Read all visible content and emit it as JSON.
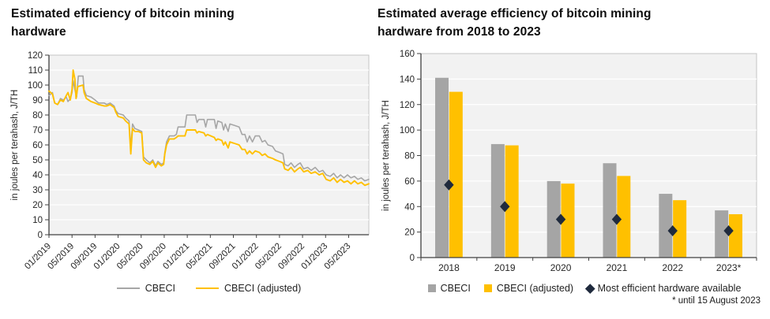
{
  "palette": {
    "plot_bg": "#F2F2F2",
    "grid": "#FFFFFF",
    "axis": "#404040",
    "plot_border": "#C4C4C4",
    "tick_text": "#262626",
    "title_text": "#0D0D0D"
  },
  "chart_data": [
    {
      "type": "line",
      "title": "Estimated efficiency of bitcoin mining hardware",
      "xlabel": "",
      "ylabel": "in joules per terahash, J/TH",
      "ylim": [
        0,
        120
      ],
      "ytick_step": 10,
      "grid": true,
      "legend_position": "bottom",
      "xlim_months": [
        0,
        55.5
      ],
      "xticks": {
        "months": [
          0,
          4,
          8,
          12,
          16,
          20,
          24,
          28,
          32,
          36,
          40,
          44,
          48,
          52
        ],
        "labels": [
          "01/2019",
          "05/2019",
          "09/2019",
          "01/2020",
          "05/2020",
          "09/2020",
          "01/2021",
          "05/2021",
          "09/2021",
          "01/2022",
          "05/2022",
          "09/2022",
          "01/2023",
          "05/2023"
        ]
      },
      "series": [
        {
          "name": "CBECI",
          "color": "#A6A6A6",
          "points": [
            [
              0,
              93
            ],
            [
              0.6,
              95
            ],
            [
              1,
              88
            ],
            [
              1.5,
              87
            ],
            [
              2,
              91
            ],
            [
              2.5,
              90
            ],
            [
              3,
              92
            ],
            [
              3.3,
              89
            ],
            [
              3.7,
              91
            ],
            [
              4,
              95
            ],
            [
              4.2,
              103
            ],
            [
              4.5,
              97
            ],
            [
              4.8,
              92
            ],
            [
              5.1,
              106
            ],
            [
              5.9,
              106
            ],
            [
              6.1,
              97
            ],
            [
              6.5,
              93
            ],
            [
              7.3,
              92
            ],
            [
              8,
              90
            ],
            [
              8.6,
              88
            ],
            [
              9.6,
              88
            ],
            [
              10,
              87
            ],
            [
              10.6,
              88
            ],
            [
              11.3,
              86
            ],
            [
              11.6,
              83
            ],
            [
              12,
              81
            ],
            [
              12.9,
              80
            ],
            [
              13.3,
              78
            ],
            [
              13.9,
              76
            ],
            [
              14.2,
              58
            ],
            [
              14.5,
              74
            ],
            [
              14.9,
              71
            ],
            [
              15.5,
              70
            ],
            [
              16.1,
              69
            ],
            [
              16.4,
              52
            ],
            [
              16.9,
              50
            ],
            [
              17.5,
              48
            ],
            [
              18,
              50
            ],
            [
              18.5,
              46
            ],
            [
              18.9,
              49
            ],
            [
              19.5,
              47
            ],
            [
              19.9,
              48
            ],
            [
              20.1,
              55
            ],
            [
              20.4,
              62
            ],
            [
              20.9,
              66
            ],
            [
              21.7,
              66
            ],
            [
              22.1,
              67
            ],
            [
              22.4,
              72
            ],
            [
              23.6,
              72
            ],
            [
              23.9,
              80
            ],
            [
              25.4,
              80
            ],
            [
              25.7,
              75
            ],
            [
              26,
              77
            ],
            [
              26.9,
              77
            ],
            [
              27.2,
              72
            ],
            [
              27.5,
              77
            ],
            [
              28.7,
              77
            ],
            [
              29,
              71
            ],
            [
              29.3,
              76
            ],
            [
              30,
              75
            ],
            [
              30.3,
              70
            ],
            [
              30.6,
              74
            ],
            [
              31.1,
              69
            ],
            [
              31.4,
              74
            ],
            [
              32.2,
              73
            ],
            [
              33,
              72
            ],
            [
              33.5,
              67
            ],
            [
              34,
              67
            ],
            [
              34.4,
              62
            ],
            [
              34.8,
              66
            ],
            [
              35.3,
              62
            ],
            [
              35.8,
              66
            ],
            [
              36.5,
              66
            ],
            [
              37,
              62
            ],
            [
              37.5,
              63
            ],
            [
              38,
              60
            ],
            [
              38.8,
              59
            ],
            [
              39.3,
              56
            ],
            [
              40,
              55
            ],
            [
              40.6,
              54
            ],
            [
              40.9,
              47
            ],
            [
              41.5,
              46
            ],
            [
              42,
              48
            ],
            [
              42.6,
              45
            ],
            [
              43.2,
              47
            ],
            [
              43.6,
              48
            ],
            [
              44.2,
              44
            ],
            [
              44.9,
              45
            ],
            [
              45.5,
              43
            ],
            [
              46.2,
              45
            ],
            [
              46.9,
              42
            ],
            [
              47.5,
              43
            ],
            [
              48.1,
              40
            ],
            [
              48.8,
              39
            ],
            [
              49.4,
              41
            ],
            [
              50,
              38
            ],
            [
              50.6,
              40
            ],
            [
              51.2,
              38
            ],
            [
              51.8,
              40
            ],
            [
              52.4,
              38
            ],
            [
              53,
              39
            ],
            [
              53.6,
              37
            ],
            [
              54.2,
              38
            ],
            [
              54.8,
              36
            ],
            [
              55.5,
              37
            ]
          ]
        },
        {
          "name": "CBECI (adjusted)",
          "color": "#FFC000",
          "points": [
            [
              0,
              96
            ],
            [
              0.6,
              94
            ],
            [
              1,
              88
            ],
            [
              1.5,
              87
            ],
            [
              2,
              90
            ],
            [
              2.5,
              89
            ],
            [
              3,
              93
            ],
            [
              3.3,
              95
            ],
            [
              3.7,
              90
            ],
            [
              4,
              97
            ],
            [
              4.2,
              110
            ],
            [
              4.5,
              104
            ],
            [
              4.7,
              91
            ],
            [
              5,
              99
            ],
            [
              5.9,
              100
            ],
            [
              6.1,
              95
            ],
            [
              6.5,
              91
            ],
            [
              7.3,
              89
            ],
            [
              8,
              88
            ],
            [
              8.6,
              87
            ],
            [
              9.6,
              86
            ],
            [
              10,
              86
            ],
            [
              10.6,
              87
            ],
            [
              11.3,
              85
            ],
            [
              11.6,
              82
            ],
            [
              12,
              79
            ],
            [
              12.9,
              78
            ],
            [
              13.3,
              76
            ],
            [
              13.9,
              74
            ],
            [
              14.2,
              54
            ],
            [
              14.5,
              71
            ],
            [
              14.9,
              69
            ],
            [
              15.5,
              69
            ],
            [
              16.1,
              68
            ],
            [
              16.4,
              50
            ],
            [
              16.9,
              48
            ],
            [
              17.5,
              47
            ],
            [
              18,
              49
            ],
            [
              18.5,
              45
            ],
            [
              18.9,
              48
            ],
            [
              19.5,
              46
            ],
            [
              19.9,
              47
            ],
            [
              20.1,
              54
            ],
            [
              20.4,
              60
            ],
            [
              20.9,
              64
            ],
            [
              21.7,
              64
            ],
            [
              22.1,
              65
            ],
            [
              22.4,
              66
            ],
            [
              23.6,
              66
            ],
            [
              23.9,
              70
            ],
            [
              25.4,
              70
            ],
            [
              25.7,
              68
            ],
            [
              26,
              69
            ],
            [
              26.9,
              68
            ],
            [
              27.2,
              66
            ],
            [
              27.5,
              67
            ],
            [
              28.7,
              65
            ],
            [
              29,
              63
            ],
            [
              29.3,
              64
            ],
            [
              30,
              63
            ],
            [
              30.3,
              60
            ],
            [
              30.6,
              62
            ],
            [
              31.1,
              58
            ],
            [
              31.4,
              62
            ],
            [
              32.2,
              61
            ],
            [
              33,
              60
            ],
            [
              33.5,
              57
            ],
            [
              34,
              57
            ],
            [
              34.4,
              54
            ],
            [
              34.8,
              56
            ],
            [
              35.3,
              54
            ],
            [
              35.8,
              56
            ],
            [
              36.5,
              55
            ],
            [
              37,
              53
            ],
            [
              37.5,
              54
            ],
            [
              38,
              52
            ],
            [
              38.8,
              51
            ],
            [
              39.3,
              50
            ],
            [
              40,
              49
            ],
            [
              40.6,
              48
            ],
            [
              40.9,
              44
            ],
            [
              41.5,
              43
            ],
            [
              42,
              45
            ],
            [
              42.6,
              42
            ],
            [
              43.2,
              44
            ],
            [
              43.6,
              45
            ],
            [
              44.2,
              42
            ],
            [
              44.9,
              43
            ],
            [
              45.5,
              41
            ],
            [
              46.2,
              42
            ],
            [
              46.9,
              40
            ],
            [
              47.5,
              41
            ],
            [
              48.1,
              37
            ],
            [
              48.8,
              36
            ],
            [
              49.4,
              38
            ],
            [
              50,
              35
            ],
            [
              50.6,
              37
            ],
            [
              51.2,
              35
            ],
            [
              51.8,
              36
            ],
            [
              52.4,
              34
            ],
            [
              53,
              36
            ],
            [
              53.6,
              34
            ],
            [
              54.2,
              35
            ],
            [
              54.8,
              33
            ],
            [
              55.5,
              34
            ]
          ]
        }
      ]
    },
    {
      "type": "bar",
      "title": "Estimated average efficiency of bitcoin mining hardware from 2018 to 2023",
      "xlabel": "",
      "ylabel": "in joules per terahash, J/TH",
      "ylim": [
        0,
        160
      ],
      "ytick_step": 20,
      "grid": true,
      "legend_position": "bottom",
      "categories": [
        "2018",
        "2019",
        "2020",
        "2021",
        "2022",
        "2023*"
      ],
      "series": [
        {
          "name": "CBECI",
          "type": "bar",
          "color": "#A5A5A5",
          "values": [
            141,
            89,
            60,
            74,
            50,
            37
          ]
        },
        {
          "name": "CBECI (adjusted)",
          "type": "bar",
          "color": "#FFC000",
          "values": [
            130,
            88,
            58,
            64,
            45,
            34
          ]
        },
        {
          "name": "Most efficient hardware available",
          "type": "diamond",
          "color": "#1F2A3D",
          "values": [
            57,
            40,
            30,
            30,
            21,
            21
          ]
        }
      ],
      "footnote": "* until 15 August 2023"
    }
  ]
}
